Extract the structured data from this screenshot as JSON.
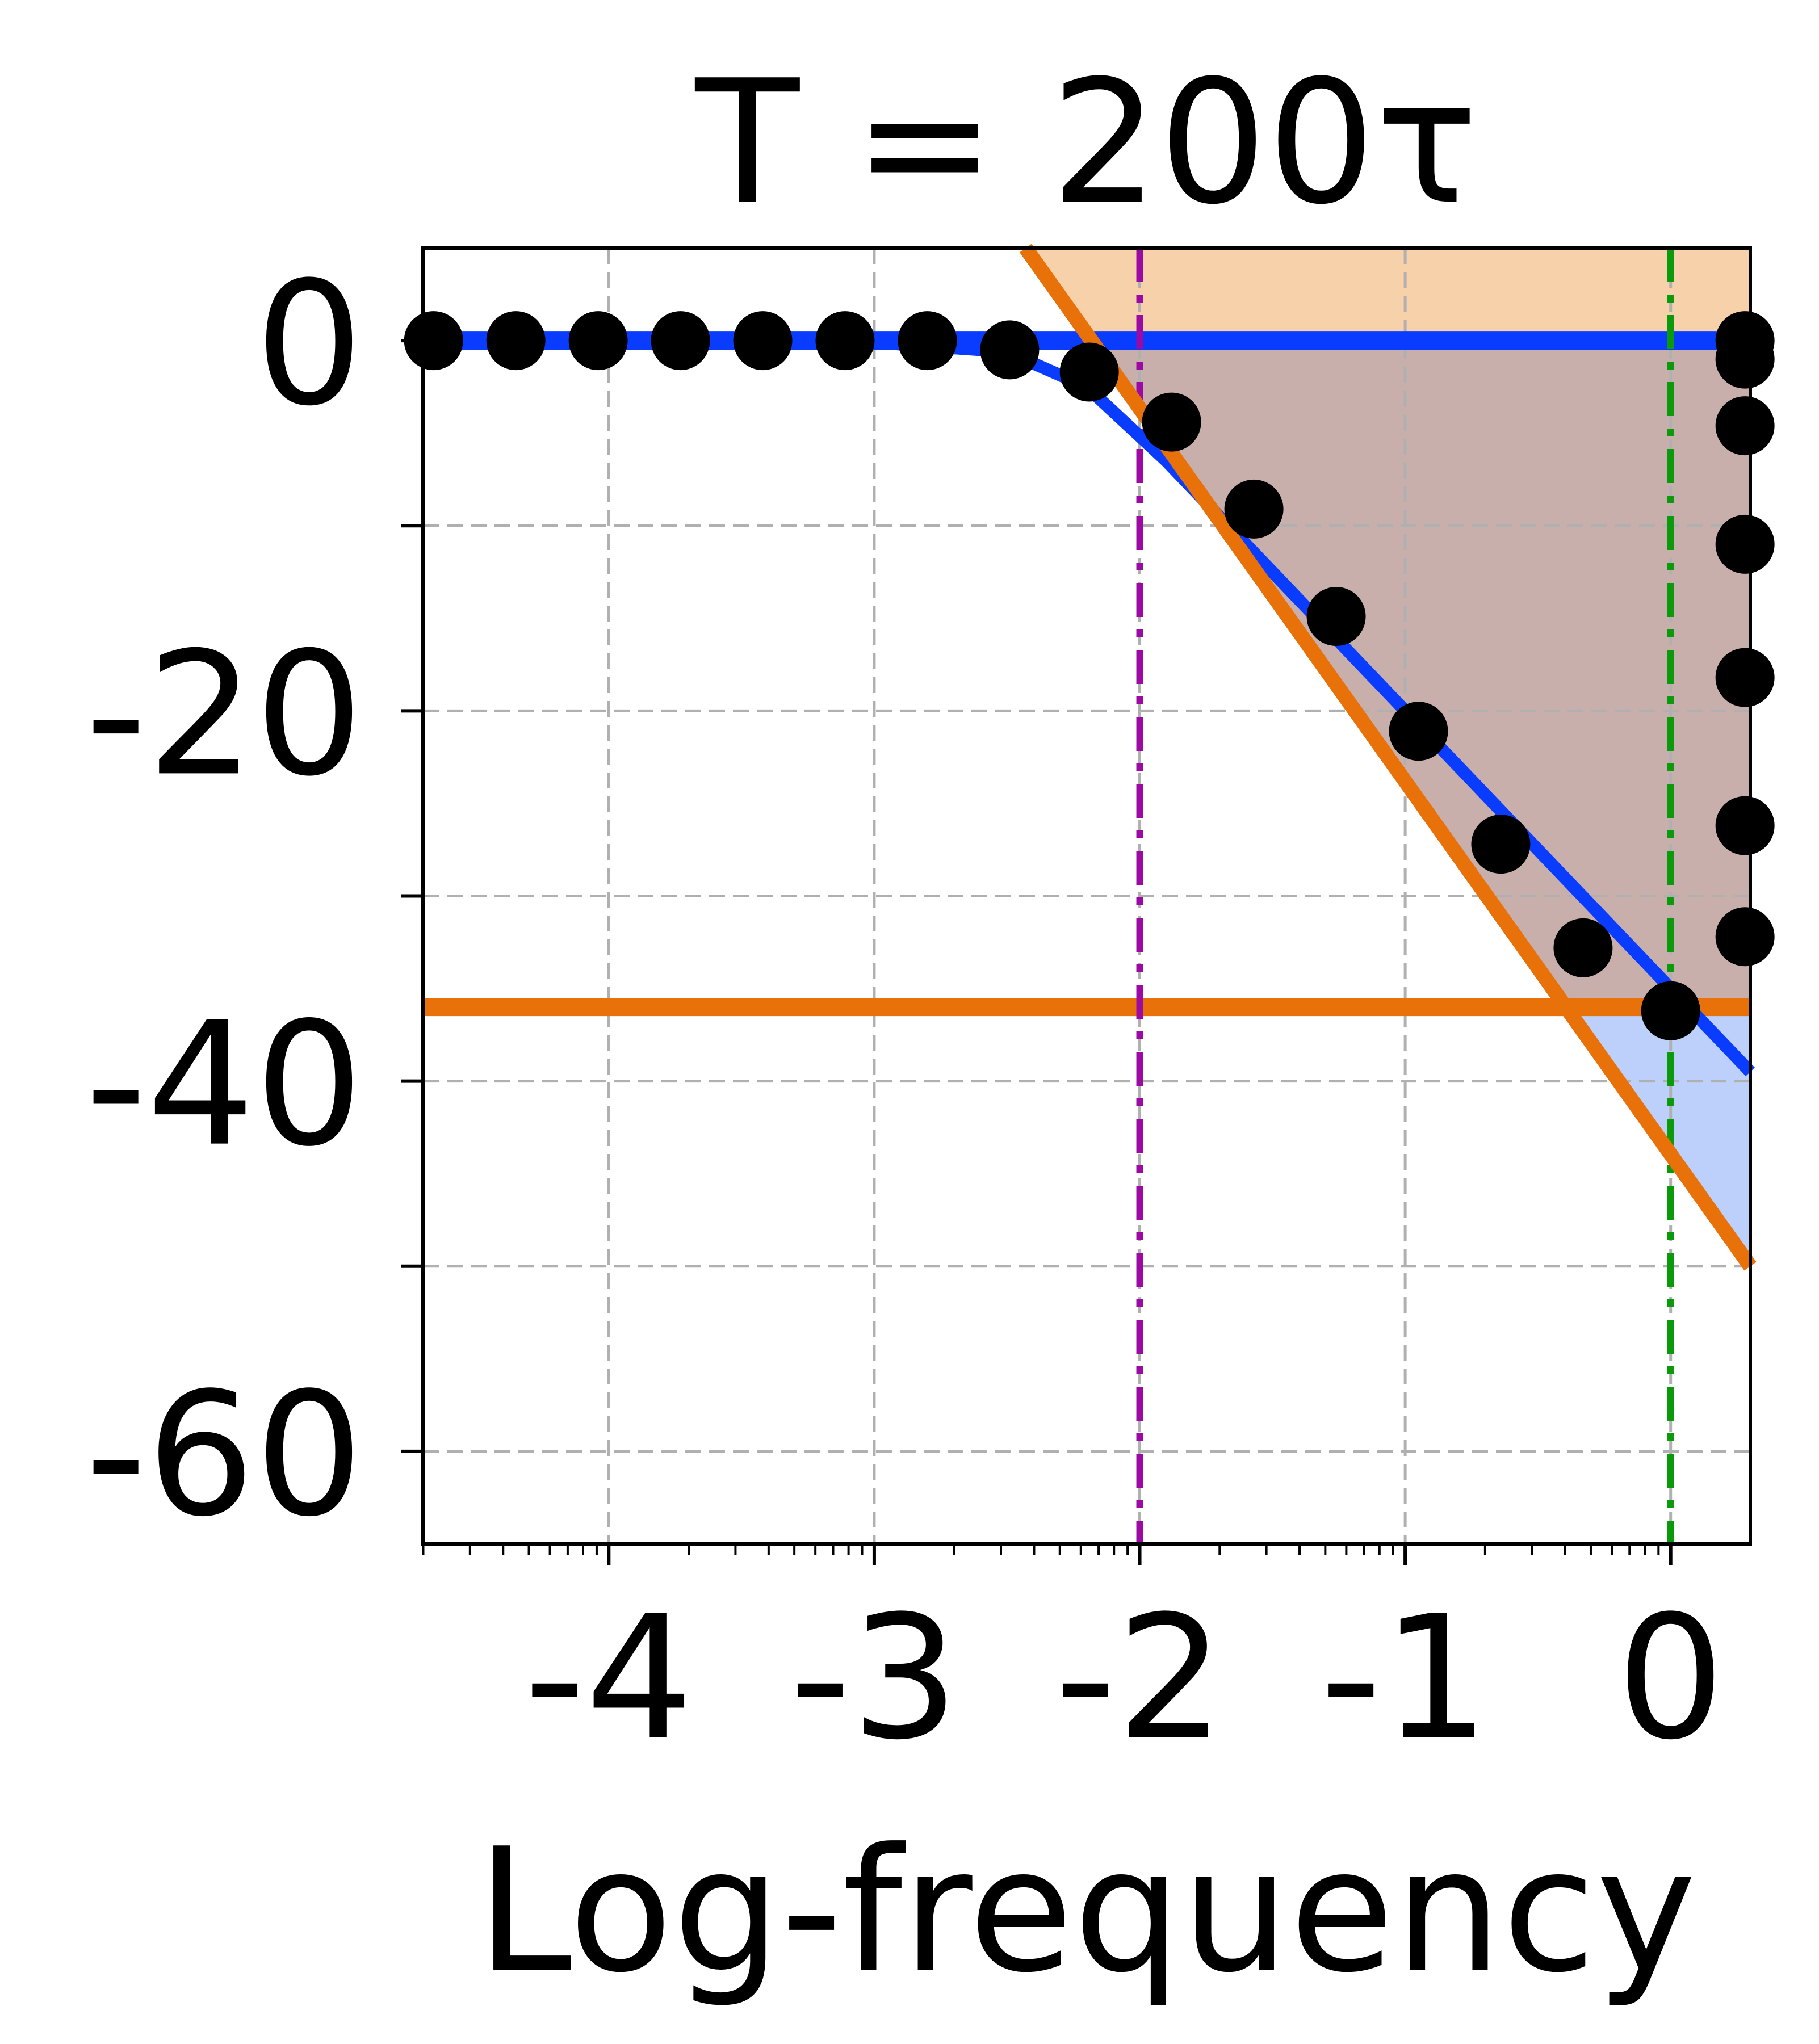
{
  "chart_data": {
    "type": "line",
    "title": "T = 200τ",
    "xlabel": "Log-frequency",
    "ylabel": "",
    "xlim": [
      -4.7,
      0.3
    ],
    "ylim": [
      -65,
      5
    ],
    "xscale": "linear",
    "grid": true,
    "legend": "none",
    "x_ticks": [
      -4,
      -3,
      -2,
      -1,
      0
    ],
    "x_tick_labels": [
      "-4",
      "-3",
      "-2",
      "-1",
      "0"
    ],
    "y_ticks_labeled": [
      0,
      -20,
      -40,
      -60
    ],
    "y_tick_labels": [
      "0",
      "-20",
      "-40",
      "-60"
    ],
    "y_ticks_minor": [
      -10,
      -30,
      -50
    ],
    "series": [
      {
        "kind": "scatter",
        "color": "#000000",
        "points": [
          [
            -4.66,
            0
          ],
          [
            -4.35,
            0
          ],
          [
            -4.04,
            0
          ],
          [
            -3.73,
            0
          ],
          [
            -3.42,
            0
          ],
          [
            -3.11,
            0
          ],
          [
            -2.8,
            0
          ],
          [
            -2.49,
            -0.5
          ],
          [
            -2.19,
            -1.7
          ],
          [
            -1.88,
            -4.4
          ],
          [
            -1.57,
            -9.1
          ],
          [
            -1.26,
            -14.9
          ],
          [
            -0.95,
            -21.1
          ],
          [
            -0.64,
            -27.2
          ],
          [
            -0.33,
            -32.8
          ],
          [
            0,
            -36.2
          ],
          [
            0.28,
            -32.2
          ],
          [
            0.28,
            -26.2
          ],
          [
            0.28,
            -18.2
          ],
          [
            0.28,
            -11.0
          ],
          [
            0.28,
            -4.6
          ],
          [
            0.28,
            -1.0
          ],
          [
            0.28,
            0
          ]
        ]
      },
      {
        "kind": "line",
        "color": "#0a3cff",
        "points": [
          [
            -4.7,
            0
          ],
          [
            -3.0,
            -0.1
          ],
          [
            -2.5,
            -0.6
          ],
          [
            -2.2,
            -2.5
          ],
          [
            -1.9,
            -6.5
          ],
          [
            -1.5,
            -12.5
          ],
          [
            -1.0,
            -20.0
          ],
          [
            -0.5,
            -27.5
          ],
          [
            0,
            -35
          ],
          [
            0.3,
            -39.5
          ]
        ]
      },
      {
        "kind": "hline",
        "color": "#0a3cff",
        "y": 0
      },
      {
        "kind": "line",
        "color": "#e8710a",
        "points": [
          [
            -2.43,
            5
          ],
          [
            0.3,
            -50
          ]
        ]
      },
      {
        "kind": "hline",
        "color": "#e8710a",
        "y": -36
      },
      {
        "kind": "vline",
        "color": "#9c0aa4",
        "x": -2
      },
      {
        "kind": "vline",
        "color": "#0b9a0b",
        "x": 0
      }
    ],
    "shaded_regions": [
      {
        "color": "#f7d1aa",
        "name": "above-orange-diagonal"
      },
      {
        "color": "#c9afab",
        "name": "between-diagonal-and-zero"
      },
      {
        "color": "#bcd0fb",
        "name": "below-orange-level"
      }
    ]
  }
}
